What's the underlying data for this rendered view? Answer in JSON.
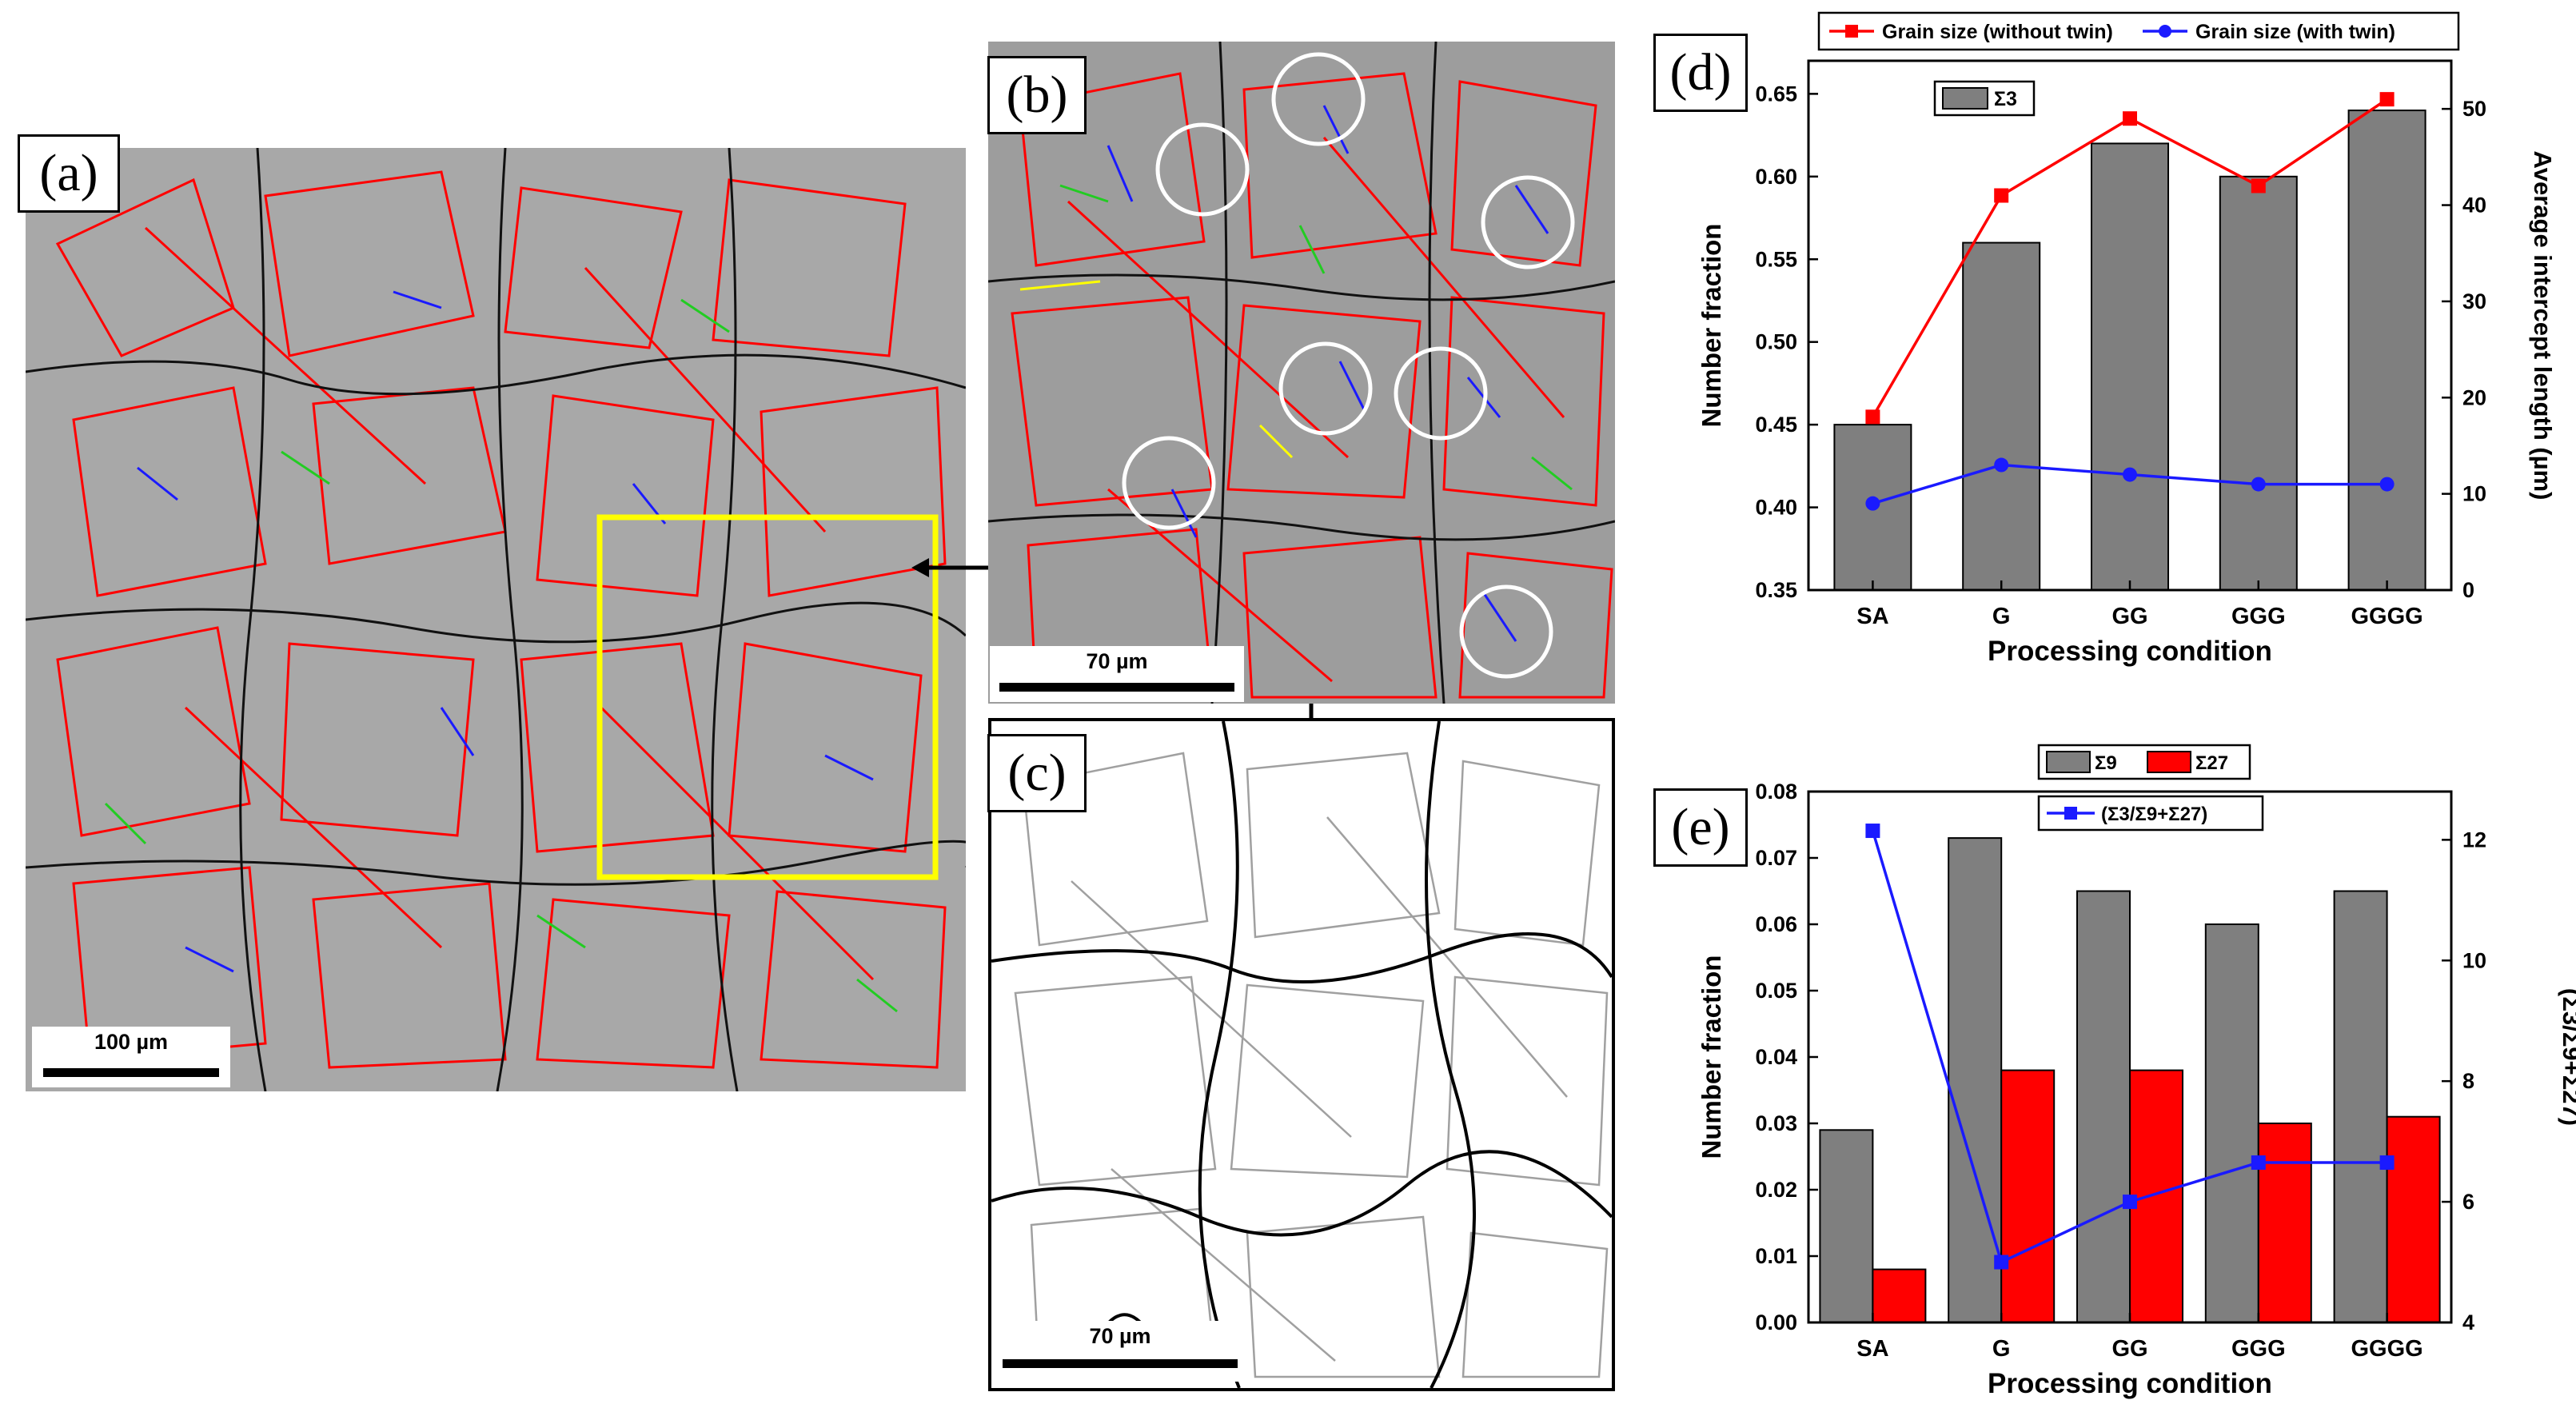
{
  "panels": {
    "a": {
      "letter": "(a)",
      "scale_label": "100 µm"
    },
    "b": {
      "letter": "(b)",
      "scale_label": "70 µm"
    },
    "c": {
      "letter": "(c)",
      "scale_label": "70 µm"
    },
    "d": {
      "letter": "(d)"
    },
    "e": {
      "letter": "(e)"
    }
  },
  "colors": {
    "red": "#ff0000",
    "blue": "#1a1aff",
    "gray_bar": "#7f7f7f",
    "red_bar": "#ff0000",
    "yellow_box": "#ffff00",
    "green": "#22cc22",
    "black": "#000000"
  },
  "chart_data": [
    {
      "id": "d",
      "type": "bar",
      "categories": [
        "SA",
        "G",
        "GG",
        "GGG",
        "GGGG"
      ],
      "xlabel": "Processing condition",
      "ylabel": "Number fraction",
      "ylabel_right": "Average intercept length (µm)",
      "ylim": [
        0.35,
        0.67
      ],
      "y_ticks": [
        "0.35",
        "0.40",
        "0.45",
        "0.50",
        "0.55",
        "0.60",
        "0.65"
      ],
      "y2lim": [
        0,
        55
      ],
      "y2_ticks": [
        "0",
        "10",
        "20",
        "30",
        "40",
        "50"
      ],
      "bar_series": [
        {
          "name": "Σ3",
          "values": [
            0.45,
            0.56,
            0.62,
            0.6,
            0.64
          ],
          "color": "#7f7f7f"
        }
      ],
      "line_series": [
        {
          "name": "Grain size (without twin)",
          "values": [
            18,
            41,
            49,
            42,
            51
          ],
          "color": "#ff0000",
          "marker": "square"
        },
        {
          "name": "Grain size (with twin)",
          "values": [
            9,
            13,
            12,
            11,
            11
          ],
          "color": "#1a1aff",
          "marker": "circle"
        }
      ],
      "legend_top": [
        "Grain size (without twin)",
        "Grain size (with twin)"
      ],
      "legend_inner": "Σ3"
    },
    {
      "id": "e",
      "type": "bar",
      "categories": [
        "SA",
        "G",
        "GG",
        "GGG",
        "GGGG"
      ],
      "xlabel": "Processing condition",
      "ylabel": "Number fraction",
      "ylabel_right": "(Σ3/Σ9+Σ27)",
      "ylim": [
        0,
        0.08
      ],
      "y_ticks": [
        "0.00",
        "0.01",
        "0.02",
        "0.03",
        "0.04",
        "0.05",
        "0.06",
        "0.07",
        "0.08"
      ],
      "y2lim": [
        4,
        12.8
      ],
      "y2_ticks": [
        "4",
        "6",
        "8",
        "10",
        "12"
      ],
      "bar_series": [
        {
          "name": "Σ9",
          "values": [
            0.029,
            0.073,
            0.065,
            0.06,
            0.065
          ],
          "color": "#7f7f7f"
        },
        {
          "name": "Σ27",
          "values": [
            0.008,
            0.038,
            0.038,
            0.03,
            0.031
          ],
          "color": "#ff0000"
        }
      ],
      "line_series": [
        {
          "name": "(Σ3/Σ9+Σ27)",
          "values": [
            12.15,
            5.0,
            6.0,
            6.65,
            6.65
          ],
          "color": "#1a1aff",
          "marker": "square"
        }
      ],
      "legend_top": [
        "Σ9",
        "Σ27"
      ],
      "legend_inner": "(Σ3/Σ9+Σ27)"
    }
  ]
}
